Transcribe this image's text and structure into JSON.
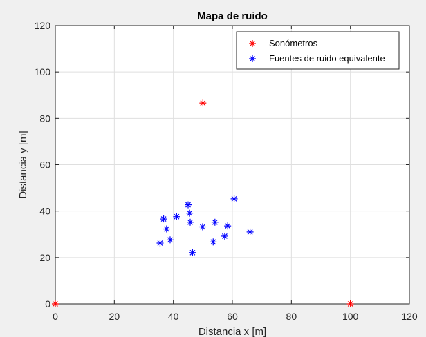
{
  "chart_data": {
    "type": "scatter",
    "title": "Mapa de ruido",
    "xlabel": "Distancia x [m]",
    "ylabel": "Distancia y [m]",
    "xlim": [
      0,
      120
    ],
    "ylim": [
      0,
      120
    ],
    "xticks": [
      "0",
      "20",
      "40",
      "60",
      "80",
      "100",
      "120"
    ],
    "yticks": [
      "0",
      "20",
      "40",
      "60",
      "80",
      "100",
      "120"
    ],
    "grid": true,
    "legend_position": "top-right",
    "marker": "asterisk",
    "series": [
      {
        "name": "Sonómetros",
        "color": "#ff0000",
        "points": [
          [
            0,
            0
          ],
          [
            100,
            0
          ],
          [
            50,
            86.6
          ]
        ]
      },
      {
        "name": "Fuentes de ruido equivalente",
        "color": "#0000ff",
        "points": [
          [
            35.5,
            26.2
          ],
          [
            36.7,
            36.6
          ],
          [
            37.7,
            32.3
          ],
          [
            38.9,
            27.6
          ],
          [
            41.1,
            37.6
          ],
          [
            45.0,
            42.7
          ],
          [
            45.5,
            39.1
          ],
          [
            45.7,
            35.2
          ],
          [
            46.5,
            22.1
          ],
          [
            49.9,
            33.2
          ],
          [
            53.5,
            26.7
          ],
          [
            54.1,
            35.2
          ],
          [
            57.4,
            29.2
          ],
          [
            58.4,
            33.6
          ],
          [
            60.6,
            45.3
          ],
          [
            66.0,
            31.0
          ]
        ]
      }
    ]
  }
}
